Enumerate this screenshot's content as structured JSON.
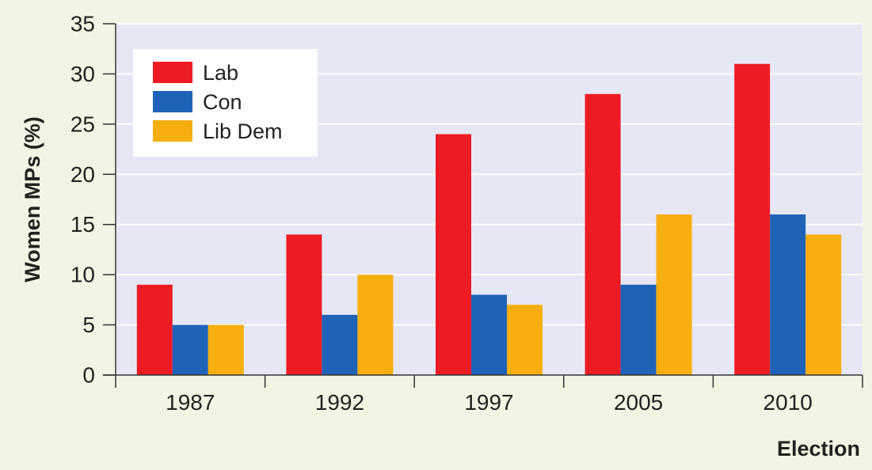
{
  "chart_data": {
    "type": "bar",
    "title": "",
    "xlabel": "Election",
    "ylabel": "Women MPs (%)",
    "categories": [
      "1987",
      "1992",
      "1997",
      "2005",
      "2010"
    ],
    "series": [
      {
        "name": "Lab",
        "color": "#ed1c24",
        "values": [
          9,
          14,
          24,
          28,
          31
        ]
      },
      {
        "name": "Con",
        "color": "#1f63b8",
        "values": [
          5,
          6,
          8,
          9,
          16
        ]
      },
      {
        "name": "Lib Dem",
        "color": "#f7ae0f",
        "values": [
          5,
          10,
          7,
          16,
          14
        ]
      }
    ],
    "ylim": [
      0,
      35
    ],
    "yticks": [
      0,
      5,
      10,
      15,
      20,
      25,
      30,
      35
    ],
    "grid": true,
    "legend_position": "top-left",
    "colors": {
      "page_background": "#f1f6e4",
      "plot_background": "#e6e7f4",
      "gridline": "#ffffff",
      "axis": "#333333",
      "text": "#222222"
    }
  }
}
